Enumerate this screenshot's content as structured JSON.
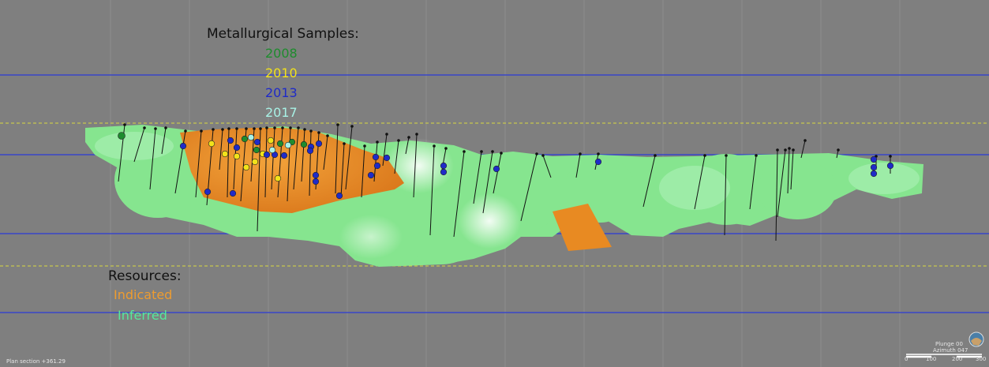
{
  "legend": {
    "samples_title": "Metallurgical Samples:",
    "samples": [
      {
        "label": "2008",
        "color": "#1e8c2e"
      },
      {
        "label": "2010",
        "color": "#f2e21a"
      },
      {
        "label": "2013",
        "color": "#1f2bc8"
      },
      {
        "label": "2017",
        "color": "#a8f2e6"
      }
    ],
    "resources_title": "Resources:",
    "resources": [
      {
        "label": "Indicated",
        "color": "#ee9c2f"
      },
      {
        "label": "Inferred",
        "color": "#56ea9c"
      }
    ]
  },
  "hud": {
    "section": "Plan section +361.29",
    "plunge": "Plunge 00",
    "azimuth": "Azimuth 047",
    "scale_ticks": [
      "0",
      "100",
      "200",
      "300"
    ]
  },
  "colors": {
    "background": "#7f7f7f",
    "level_line": "#2a3bd8",
    "dash_line": "#d8d840",
    "indicated": "#e88a22",
    "inferred": "#86e58f",
    "inferred_light": "#a6efb0",
    "drillhole": "#111111"
  }
}
